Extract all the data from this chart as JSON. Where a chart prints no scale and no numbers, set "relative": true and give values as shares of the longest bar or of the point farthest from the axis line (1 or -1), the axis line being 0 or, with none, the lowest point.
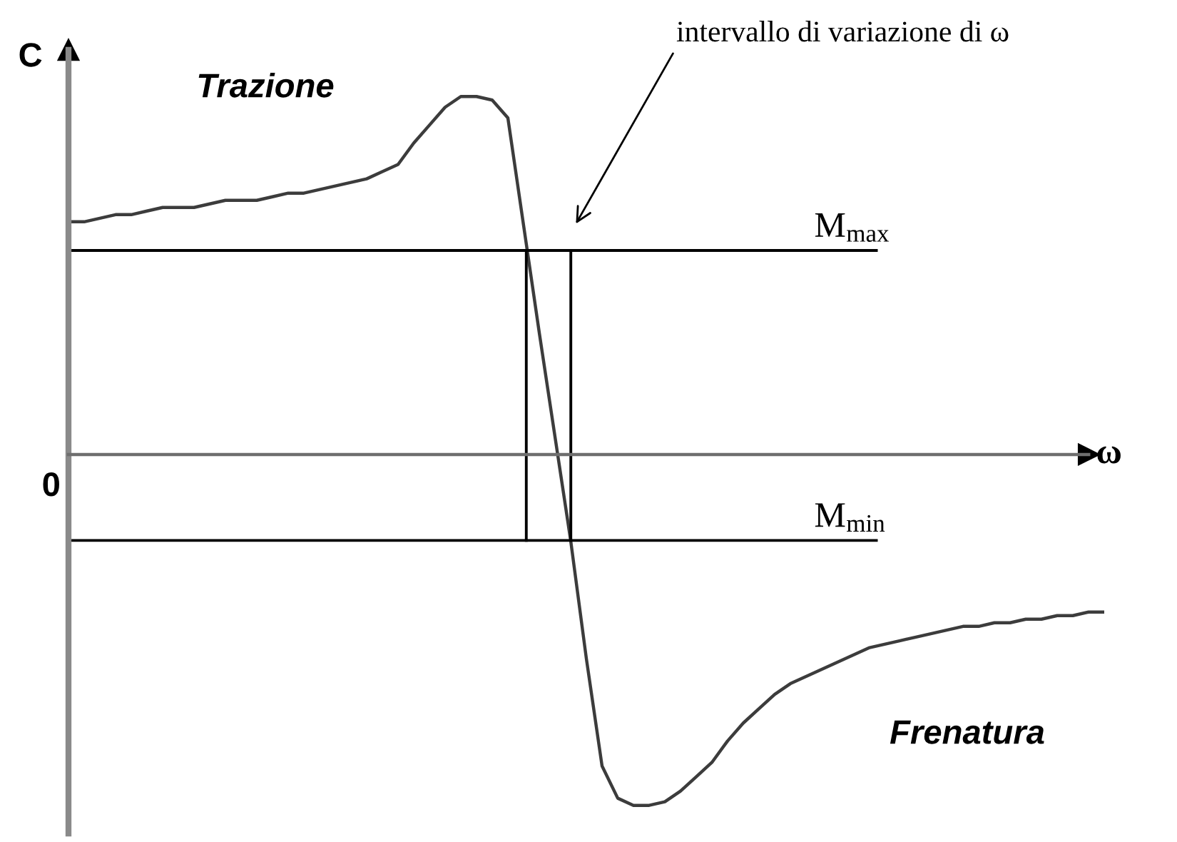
{
  "chart_data": {
    "type": "line",
    "relative": true,
    "xlabel": "ω",
    "ylabel": "C",
    "categories": [
      null,
      null,
      null,
      null,
      null,
      null,
      null,
      null,
      null,
      null,
      null,
      null,
      null,
      null,
      null,
      null,
      null,
      null,
      null,
      null,
      null,
      null,
      null,
      null,
      null,
      null,
      null,
      null,
      null,
      null,
      null,
      null,
      null,
      null,
      null,
      null,
      null,
      null,
      null,
      null,
      null,
      null,
      null,
      null,
      null,
      null,
      null,
      null,
      null,
      null,
      null,
      null,
      null,
      null,
      null,
      null,
      null,
      null,
      null,
      null,
      null,
      null,
      null,
      null,
      null,
      null,
      null
    ],
    "series": [
      {
        "color": "#3c3c3c",
        "values": [
          0.65,
          0.65,
          0.66,
          0.67,
          0.67,
          0.68,
          0.69,
          0.69,
          0.69,
          0.7,
          0.71,
          0.71,
          0.71,
          0.72,
          0.73,
          0.73,
          0.74,
          0.75,
          0.76,
          0.77,
          0.79,
          0.81,
          0.87,
          0.92,
          0.97,
          1.0,
          1.0,
          0.99,
          0.94,
          0.64,
          0.34,
          0.05,
          -0.24,
          -0.57,
          -0.87,
          -0.96,
          -0.98,
          -0.98,
          -0.97,
          -0.94,
          -0.9,
          -0.86,
          -0.8,
          -0.75,
          -0.71,
          -0.67,
          -0.64,
          -0.62,
          -0.6,
          -0.58,
          -0.56,
          -0.54,
          -0.53,
          -0.52,
          -0.51,
          -0.5,
          -0.49,
          -0.48,
          -0.48,
          -0.47,
          -0.47,
          -0.46,
          -0.46,
          -0.45,
          -0.45,
          -0.44,
          -0.44
        ]
      }
    ],
    "ref_lines": [
      {
        "axis": "y",
        "value": 0.57,
        "label": "M$_{max}$",
        "color": "#000000"
      },
      {
        "axis": "y",
        "value": -0.24,
        "label": "M$_{min}$",
        "color": "#000000"
      }
    ],
    "annotations": [
      "Trazione",
      "Frenatura",
      "intervallo di variazione di ω",
      "0"
    ]
  }
}
